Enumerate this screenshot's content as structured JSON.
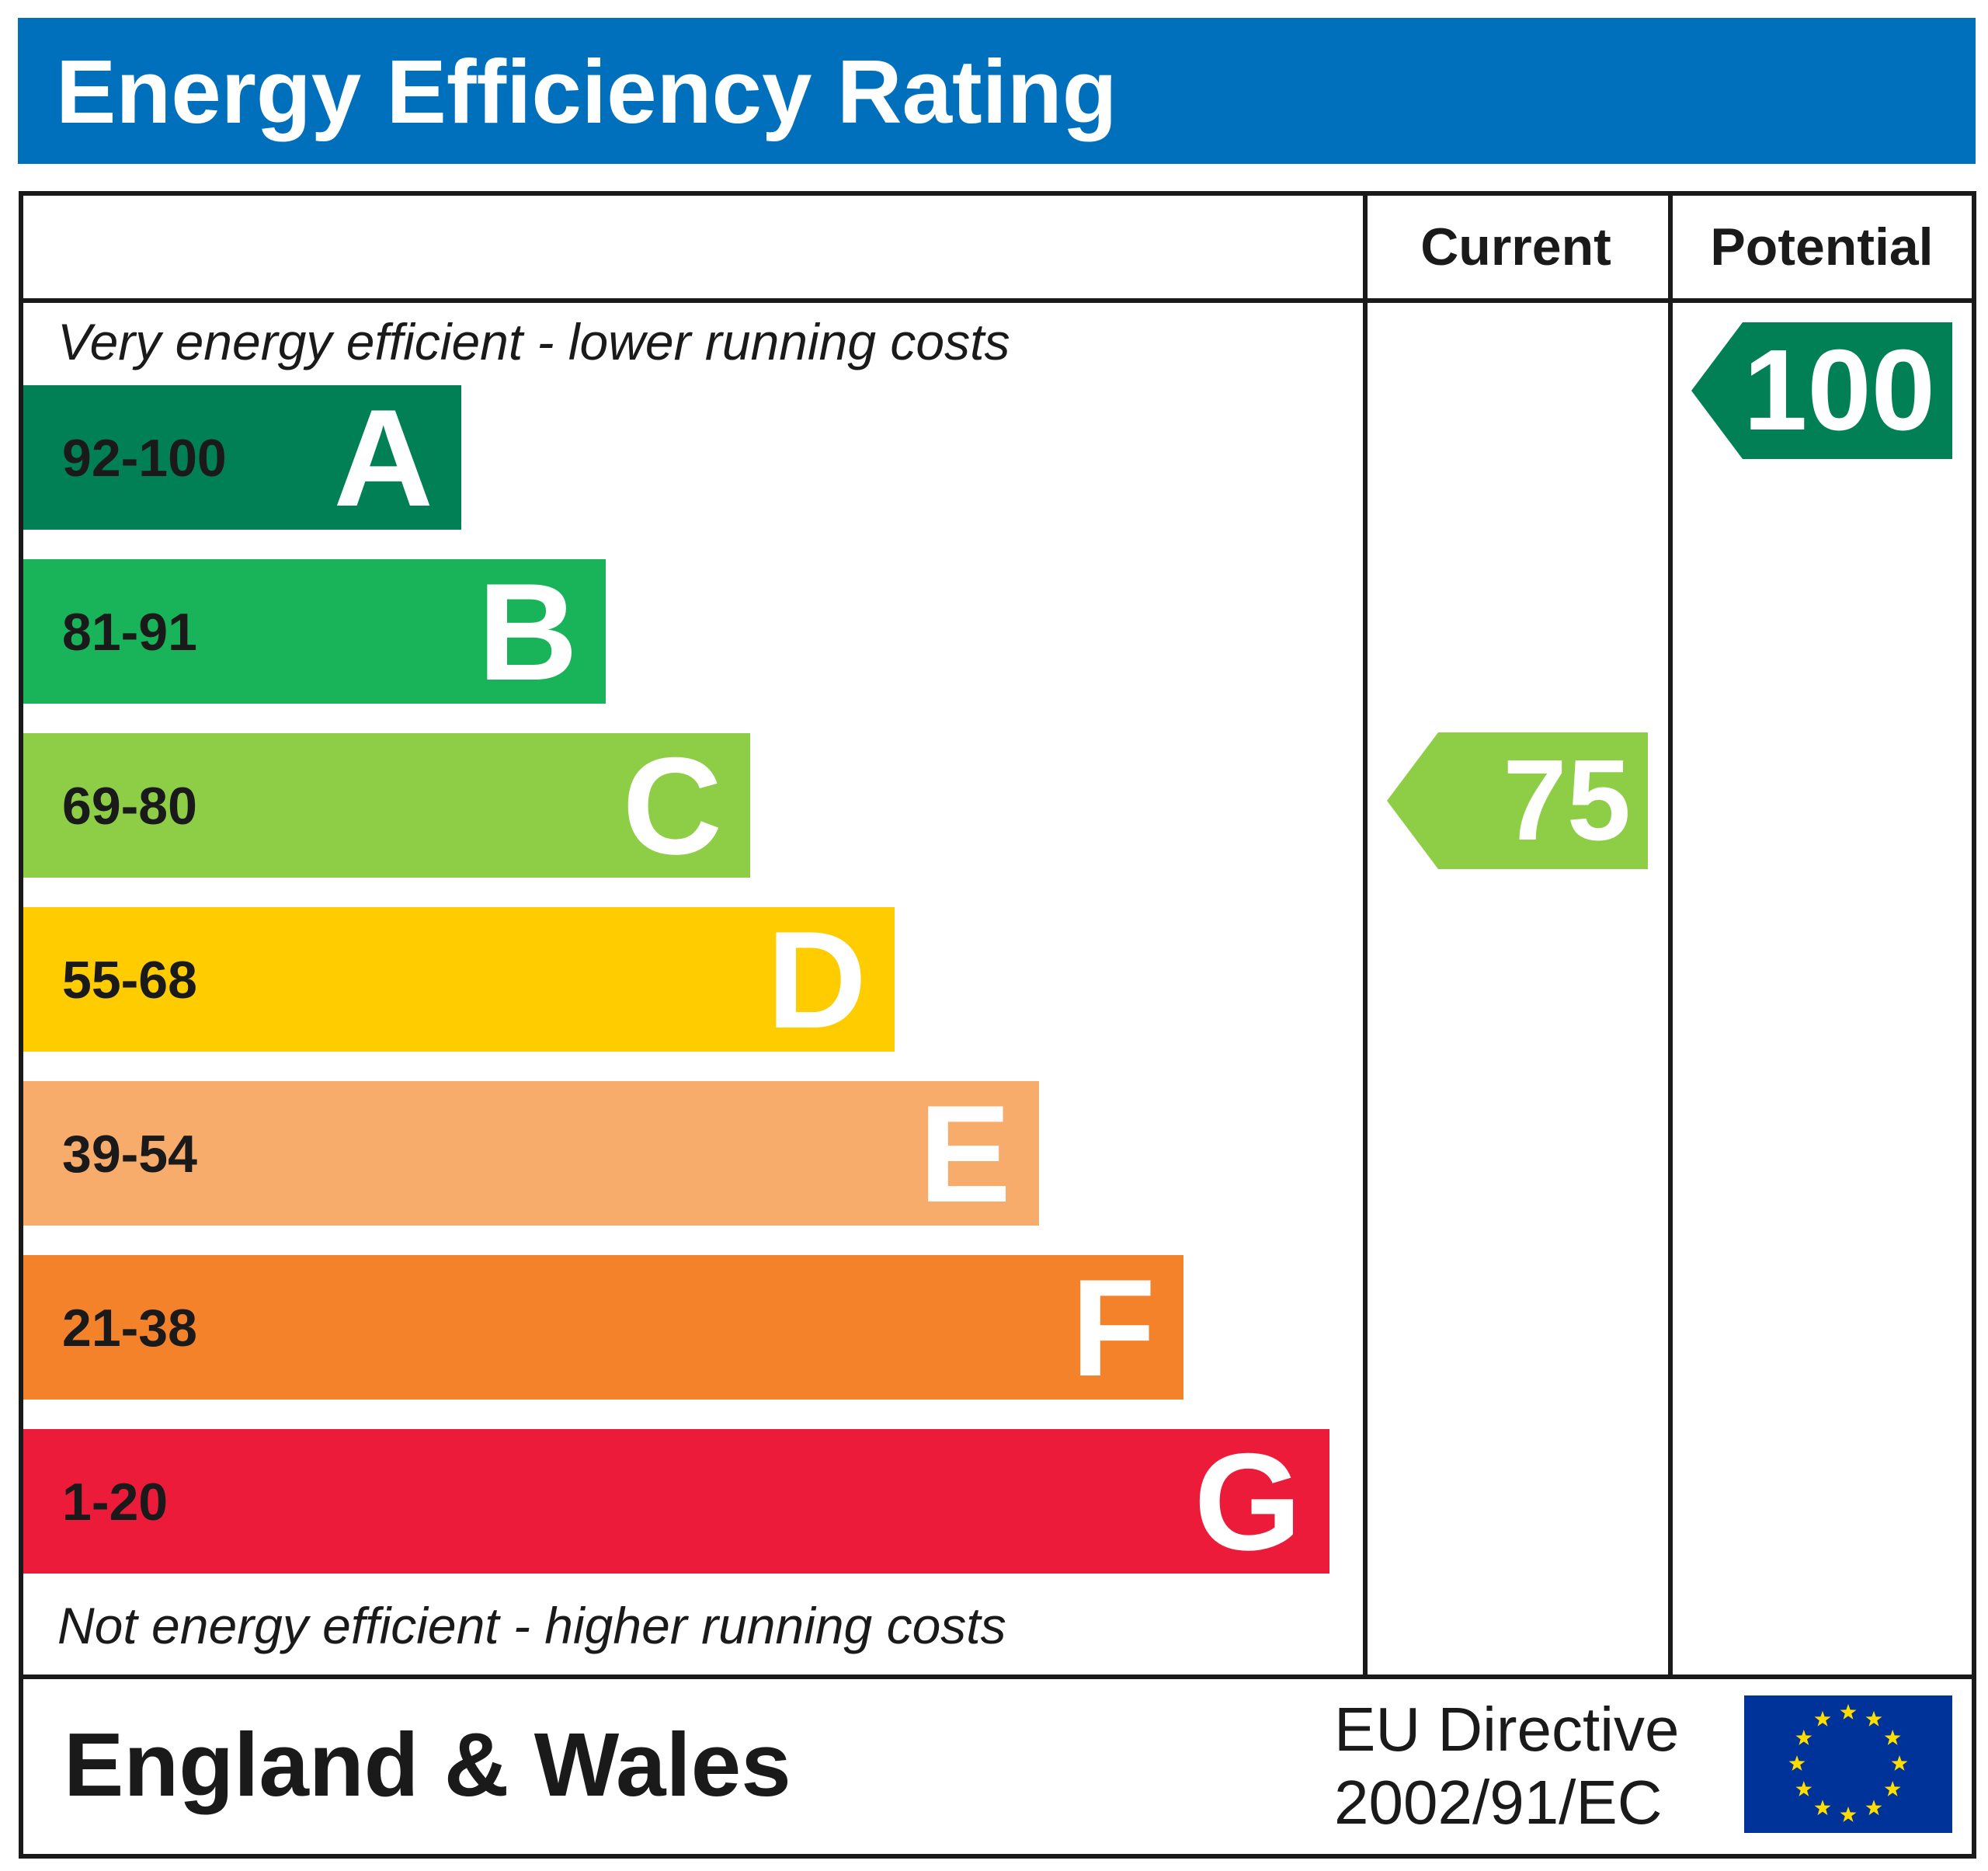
{
  "title": "Energy Efficiency Rating",
  "columns": {
    "current": "Current",
    "potential": "Potential"
  },
  "top_note": "Very energy efficient - lower running costs",
  "bottom_note": "Not energy efficient - higher running costs",
  "footer": {
    "region": "England & Wales",
    "directive_line1": "EU Directive",
    "directive_line2": "2002/91/EC"
  },
  "colors": {
    "header": "#0070BC",
    "A": "#008054",
    "B": "#19B459",
    "C": "#8DCE46",
    "D": "#FFCC00",
    "E": "#F7AC6B",
    "F": "#F4822B",
    "G": "#ED1B3A",
    "eu_flag": "#003399",
    "eu_star": "#FFDD00"
  },
  "chart_data": {
    "type": "bar",
    "categories": [
      "A",
      "B",
      "C",
      "D",
      "E",
      "F",
      "G"
    ],
    "bands": [
      {
        "letter": "A",
        "range": "92-100",
        "min": 92,
        "max": 100
      },
      {
        "letter": "B",
        "range": "81-91",
        "min": 81,
        "max": 91
      },
      {
        "letter": "C",
        "range": "69-80",
        "min": 69,
        "max": 80
      },
      {
        "letter": "D",
        "range": "55-68",
        "min": 55,
        "max": 68
      },
      {
        "letter": "E",
        "range": "39-54",
        "min": 39,
        "max": 54
      },
      {
        "letter": "F",
        "range": "21-38",
        "min": 21,
        "max": 38
      },
      {
        "letter": "G",
        "range": "1-20",
        "min": 1,
        "max": 20
      }
    ],
    "current": {
      "value": 75,
      "band": "C"
    },
    "potential": {
      "value": 100,
      "band": "A"
    }
  }
}
